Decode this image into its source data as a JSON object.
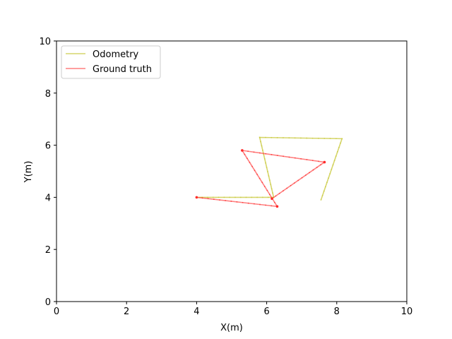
{
  "chart_data": {
    "type": "line",
    "xlabel": "X(m)",
    "ylabel": "Y(m)",
    "xlim": [
      0,
      10
    ],
    "ylim": [
      0,
      10
    ],
    "xticks": [
      "0",
      "2",
      "4",
      "6",
      "8",
      "10"
    ],
    "yticks": [
      "0",
      "2",
      "4",
      "6",
      "8",
      "10"
    ],
    "grid": false,
    "legend_position": "top-left",
    "series": [
      {
        "name": "Odometry",
        "color": "#c8c83a",
        "points": [
          [
            4.0,
            4.0
          ],
          [
            6.2,
            4.0
          ],
          [
            5.8,
            6.3
          ],
          [
            8.15,
            6.25
          ],
          [
            7.55,
            3.9
          ]
        ]
      },
      {
        "name": "Ground truth",
        "color": "#ff2a2a",
        "points": [
          [
            4.0,
            4.0
          ],
          [
            6.3,
            3.65
          ],
          [
            5.3,
            5.8
          ],
          [
            7.65,
            5.35
          ],
          [
            6.15,
            3.95
          ]
        ]
      }
    ]
  }
}
